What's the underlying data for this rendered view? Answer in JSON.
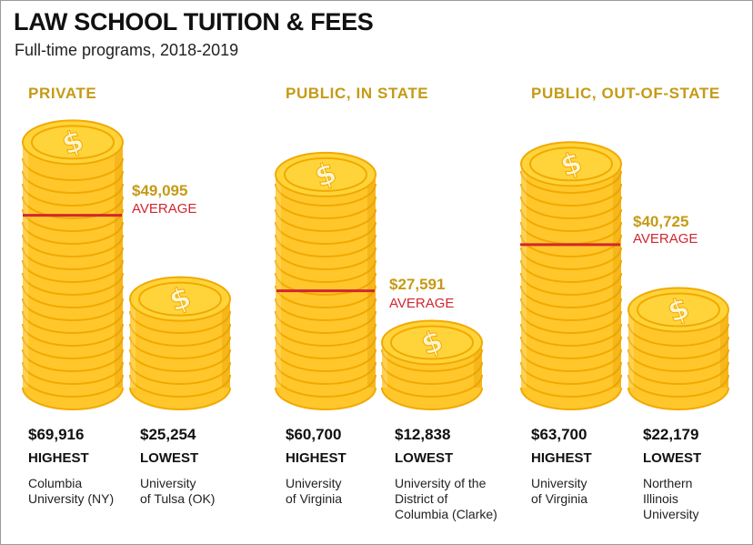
{
  "chart_data": {
    "type": "bar",
    "title": "LAW SCHOOL TUITION & FEES",
    "subtitle": "Full-time programs, 2018-2019",
    "unit": "$",
    "groups": [
      {
        "name": "PRIVATE",
        "average": 49095,
        "average_text": "$49,095",
        "average_label": "AVERAGE",
        "bars": [
          {
            "category": "HIGHEST",
            "value": 69916,
            "value_text": "$69,916",
            "school": "Columbia\nUniversity (NY)"
          },
          {
            "category": "LOWEST",
            "value": 25254,
            "value_text": "$25,254",
            "school": "University\nof Tulsa (OK)"
          }
        ]
      },
      {
        "name": "PUBLIC, IN STATE",
        "average": 27591,
        "average_text": "$27,591",
        "average_label": "AVERAGE",
        "bars": [
          {
            "category": "HIGHEST",
            "value": 60700,
            "value_text": "$60,700",
            "school": "University\nof Virginia"
          },
          {
            "category": "LOWEST",
            "value": 12838,
            "value_text": "$12,838",
            "school": "University of the\nDistrict of\nColumbia (Clarke)"
          }
        ]
      },
      {
        "name": "PUBLIC, OUT-OF-STATE",
        "average": 40725,
        "average_text": "$40,725",
        "average_label": "AVERAGE",
        "bars": [
          {
            "category": "HIGHEST",
            "value": 63700,
            "value_text": "$63,700",
            "school": "University\nof Virginia"
          },
          {
            "category": "LOWEST",
            "value": 22179,
            "value_text": "$22,179",
            "school": "Northern\nIllinois\nUniversity"
          }
        ]
      }
    ]
  },
  "colors": {
    "coin_fill": "#ffc72c",
    "coin_edge": "#f2a900",
    "coin_shade": "#e39a00",
    "coin_top": "#ffd43b",
    "average_line": "#d22630",
    "accent_gold": "#c59a15"
  },
  "icons": {
    "coin": "dollar-coin-icon"
  }
}
